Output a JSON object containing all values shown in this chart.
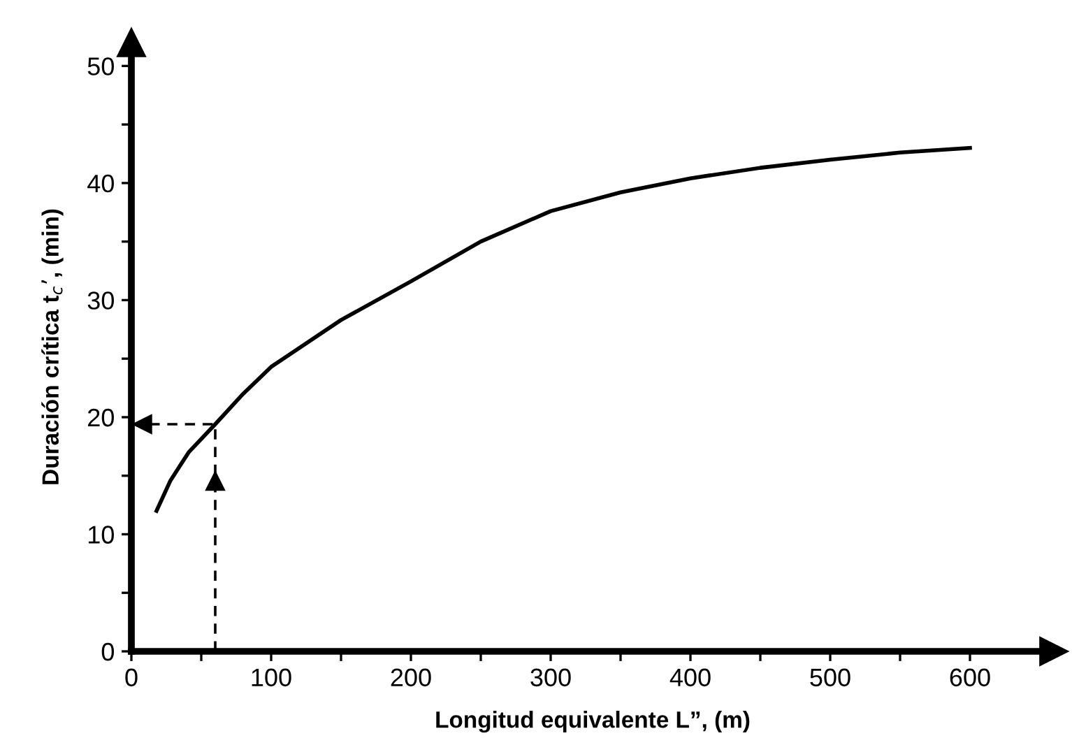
{
  "chart_data": {
    "type": "line",
    "xlabel": "Longitud equivalente L”, (m)",
    "ylabel": "Duración crítica t$_{c}$’, (min)",
    "xlim": [
      0,
      660
    ],
    "ylim": [
      0,
      52
    ],
    "xticks": [
      0,
      {
        "value": 50,
        "label": null
      },
      100,
      {
        "value": 150,
        "label": null
      },
      200,
      {
        "value": 250,
        "label": null
      },
      300,
      {
        "value": 350,
        "label": null
      },
      400,
      {
        "value": 450,
        "label": null
      },
      500,
      {
        "value": 550,
        "label": null
      },
      600
    ],
    "yticks": [
      0,
      {
        "value": 5,
        "label": null
      },
      10,
      {
        "value": 15,
        "label": null
      },
      20,
      {
        "value": 25,
        "label": null
      },
      30,
      {
        "value": 35,
        "label": null
      },
      40,
      {
        "value": 45,
        "label": null
      },
      50
    ],
    "grid": false,
    "marker": "none",
    "series": [
      {
        "color": "#000000",
        "line_style": "solid",
        "x": [
          18,
          28,
          41,
          60,
          80,
          100,
          150,
          200,
          250,
          300,
          350,
          400,
          450,
          500,
          550,
          600
        ],
        "values": [
          12,
          14.6,
          17.0,
          19.4,
          22.0,
          24.3,
          28.3,
          31.6,
          35.0,
          37.6,
          39.2,
          40.4,
          41.3,
          42.0,
          42.6,
          43.0
        ]
      },
      {
        "color": "#000000",
        "line_style": "dashed",
        "x": [
          60,
          60,
          0
        ],
        "values": [
          0,
          19.4,
          19.4
        ]
      }
    ]
  }
}
